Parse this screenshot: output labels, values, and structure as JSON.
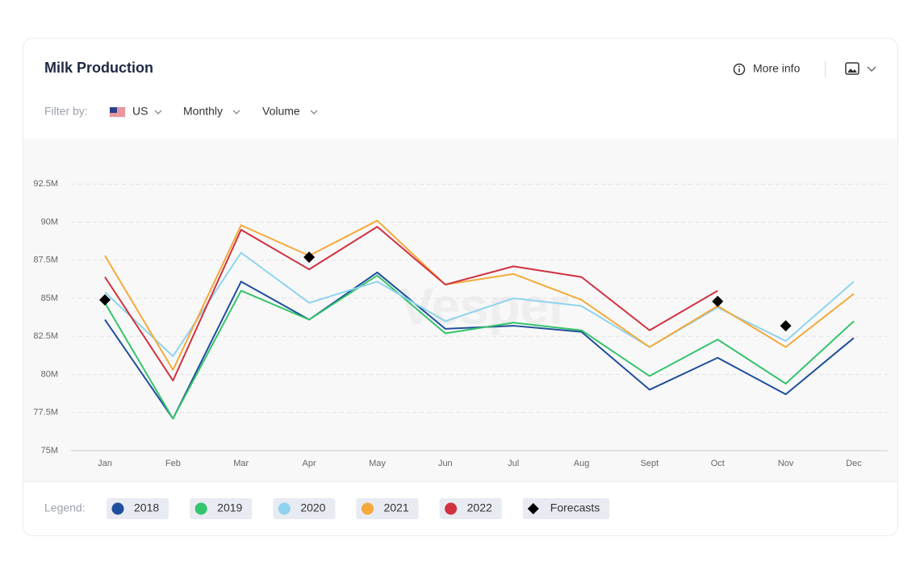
{
  "header": {
    "title": "Milk Production",
    "more_info": "More info"
  },
  "filters": {
    "label": "Filter by:",
    "items": [
      "US",
      "Monthly",
      "Volume"
    ]
  },
  "legend_label": "Legend:",
  "watermark": "Vesper",
  "chart_data": {
    "type": "line",
    "categories": [
      "Jan",
      "Feb",
      "Mar",
      "Apr",
      "May",
      "Jun",
      "Jul",
      "Aug",
      "Sept",
      "Oct",
      "Nov",
      "Dec"
    ],
    "series": [
      {
        "name": "2018",
        "color": "#1f4e9c",
        "values": [
          83.6,
          77.1,
          86.1,
          83.6,
          86.7,
          83.0,
          83.2,
          82.8,
          79.0,
          81.1,
          78.7,
          82.4
        ]
      },
      {
        "name": "2019",
        "color": "#35c46b",
        "values": [
          84.7,
          77.1,
          85.5,
          83.6,
          86.5,
          82.7,
          83.4,
          82.9,
          79.9,
          82.3,
          79.4,
          83.5
        ]
      },
      {
        "name": "2020",
        "color": "#8fd3ef",
        "values": [
          85.4,
          81.2,
          88.0,
          84.7,
          86.1,
          83.5,
          85.0,
          84.5,
          81.8,
          84.4,
          82.2,
          86.1
        ]
      },
      {
        "name": "2021",
        "color": "#f5a93a",
        "values": [
          87.8,
          80.3,
          89.8,
          87.8,
          90.1,
          85.9,
          86.6,
          84.9,
          81.8,
          84.5,
          81.8,
          85.3
        ]
      },
      {
        "name": "2022",
        "color": "#d1313f",
        "values": [
          86.4,
          79.6,
          89.5,
          86.9,
          89.7,
          85.9,
          87.1,
          86.4,
          82.9,
          85.5,
          null,
          null
        ]
      },
      {
        "name": "Forecasts",
        "color": "#000000",
        "marker": "diamond",
        "values": [
          84.9,
          null,
          null,
          87.7,
          null,
          null,
          null,
          null,
          null,
          84.8,
          83.2,
          null
        ]
      }
    ],
    "ylim": [
      75,
      94
    ],
    "yticks": [
      {
        "value": 75,
        "label": "75M"
      },
      {
        "value": 77.5,
        "label": "77.5M"
      },
      {
        "value": 80,
        "label": "80M"
      },
      {
        "value": 82.5,
        "label": "82.5M"
      },
      {
        "value": 85,
        "label": "85M"
      },
      {
        "value": 87.5,
        "label": "87.5M"
      },
      {
        "value": 90,
        "label": "90M"
      },
      {
        "value": 92.5,
        "label": "92.5M"
      }
    ],
    "grid": true
  }
}
